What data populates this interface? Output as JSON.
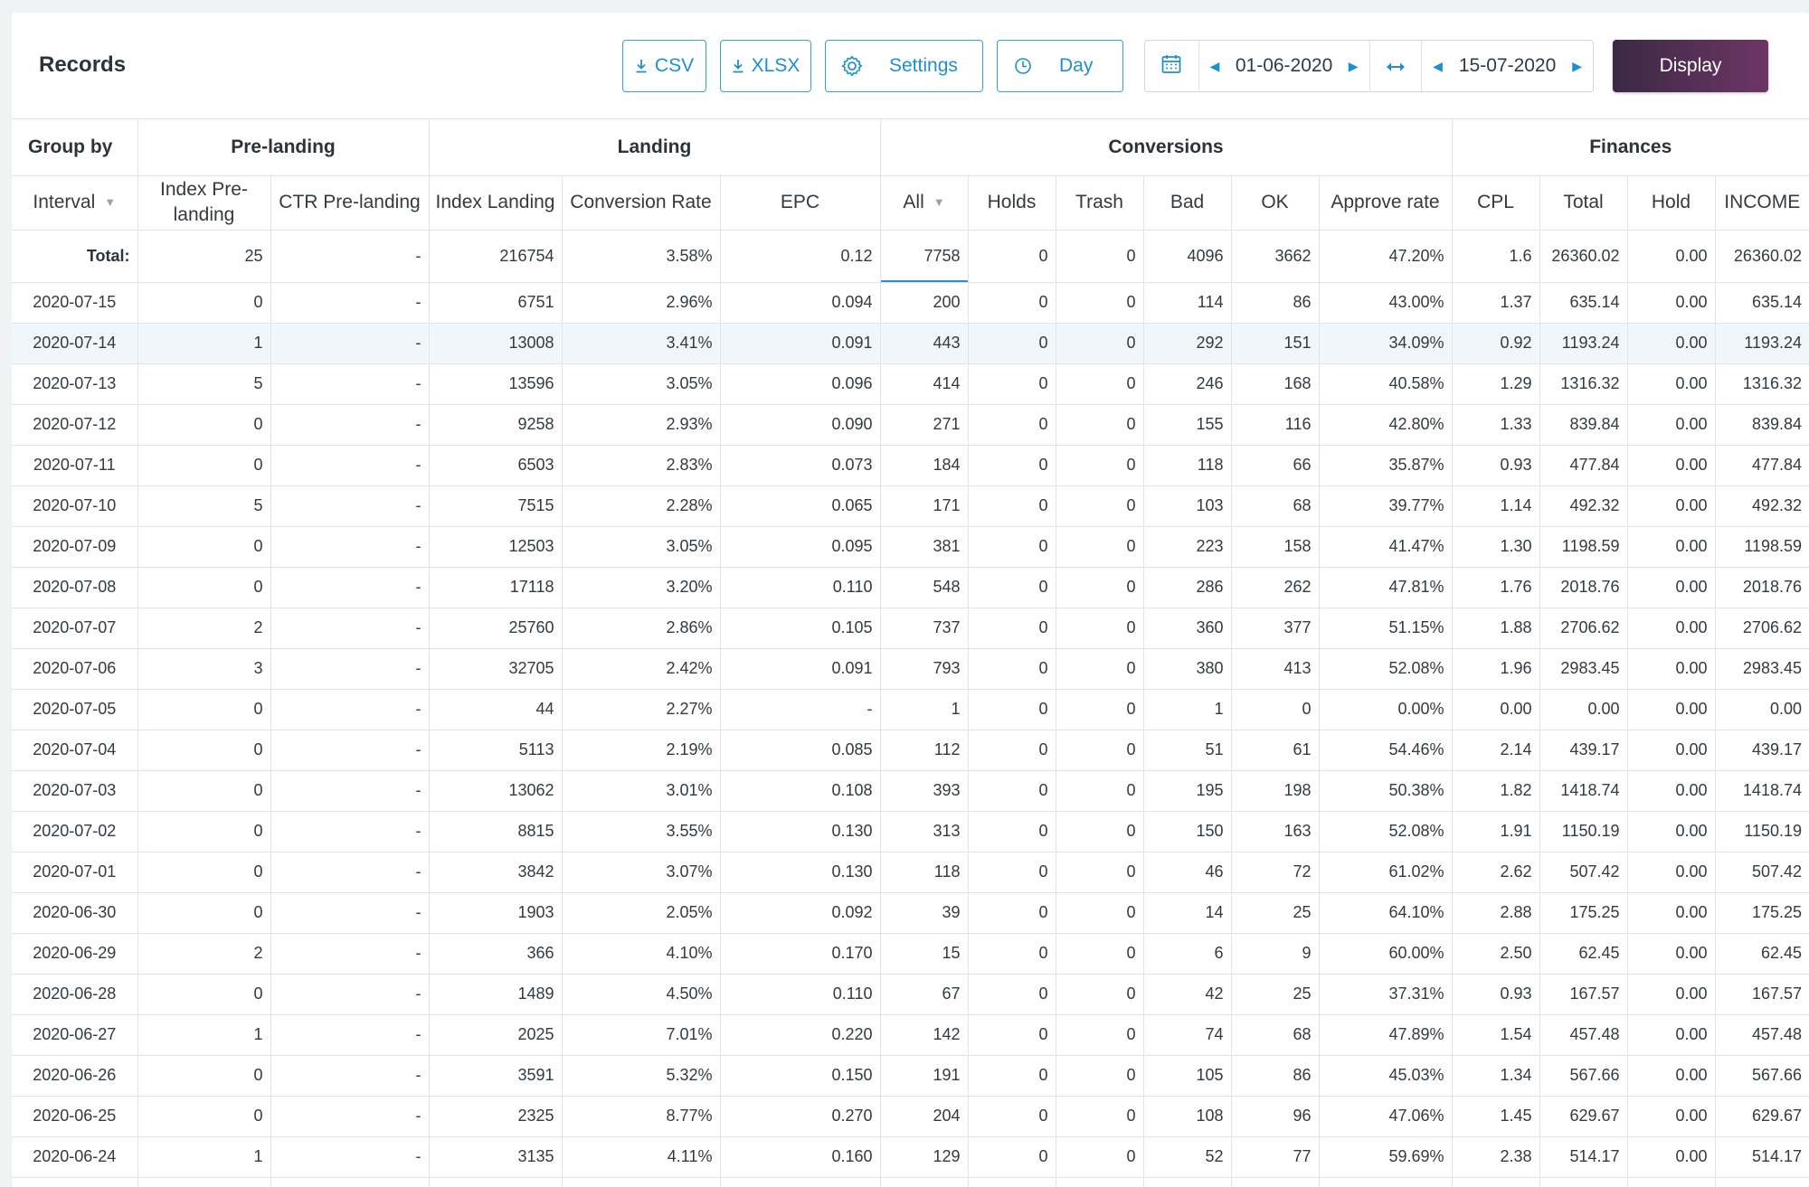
{
  "page": {
    "title": "Records"
  },
  "toolbar": {
    "csv_label": "CSV",
    "xlsx_label": "XLSX",
    "settings_label": "Settings",
    "interval_label": "Day",
    "date_from": "01-06-2020",
    "date_to": "15-07-2020",
    "display_label": "Display"
  },
  "icons": {
    "download": "download-icon",
    "settings": "gear-icon",
    "interval": "clock-icon",
    "calendar": "calendar-icon",
    "swap": "swap-horizontal-icon",
    "prev": "caret-left-icon",
    "next": "caret-right-icon",
    "sort": "caret-down-icon"
  },
  "colors": {
    "accent": "#1e8fd0",
    "display_button_start": "#3a2945",
    "display_button_end": "#6e3565",
    "highlight_row": "#f0f7fc"
  },
  "table": {
    "groups": [
      {
        "label": "Group by",
        "span": 1
      },
      {
        "label": "Pre-landing",
        "span": 2
      },
      {
        "label": "Landing",
        "span": 3
      },
      {
        "label": "Conversions",
        "span": 6
      },
      {
        "label": "Finances",
        "span": 4
      }
    ],
    "columns": [
      {
        "label": "Interval",
        "sortable": true
      },
      {
        "label": "Index Pre-landing"
      },
      {
        "label": "CTR Pre-landing"
      },
      {
        "label": "Index Landing"
      },
      {
        "label": "Conversion Rate"
      },
      {
        "label": "EPC"
      },
      {
        "label": "All",
        "sortable": true
      },
      {
        "label": "Holds"
      },
      {
        "label": "Trash"
      },
      {
        "label": "Bad"
      },
      {
        "label": "OK"
      },
      {
        "label": "Approve rate"
      },
      {
        "label": "CPL"
      },
      {
        "label": "Total"
      },
      {
        "label": "Hold"
      },
      {
        "label": "INCOME"
      }
    ],
    "total": [
      "Total:",
      "25",
      "-",
      "216754",
      "3.58%",
      "0.12",
      "7758",
      "0",
      "0",
      "4096",
      "3662",
      "47.20%",
      "1.6",
      "26360.02",
      "0.00",
      "26360.02"
    ],
    "highlighted_row": 1,
    "rows": [
      [
        "2020-07-15",
        "0",
        "-",
        "6751",
        "2.96%",
        "0.094",
        "200",
        "0",
        "0",
        "114",
        "86",
        "43.00%",
        "1.37",
        "635.14",
        "0.00",
        "635.14"
      ],
      [
        "2020-07-14",
        "1",
        "-",
        "13008",
        "3.41%",
        "0.091",
        "443",
        "0",
        "0",
        "292",
        "151",
        "34.09%",
        "0.92",
        "1193.24",
        "0.00",
        "1193.24"
      ],
      [
        "2020-07-13",
        "5",
        "-",
        "13596",
        "3.05%",
        "0.096",
        "414",
        "0",
        "0",
        "246",
        "168",
        "40.58%",
        "1.29",
        "1316.32",
        "0.00",
        "1316.32"
      ],
      [
        "2020-07-12",
        "0",
        "-",
        "9258",
        "2.93%",
        "0.090",
        "271",
        "0",
        "0",
        "155",
        "116",
        "42.80%",
        "1.33",
        "839.84",
        "0.00",
        "839.84"
      ],
      [
        "2020-07-11",
        "0",
        "-",
        "6503",
        "2.83%",
        "0.073",
        "184",
        "0",
        "0",
        "118",
        "66",
        "35.87%",
        "0.93",
        "477.84",
        "0.00",
        "477.84"
      ],
      [
        "2020-07-10",
        "5",
        "-",
        "7515",
        "2.28%",
        "0.065",
        "171",
        "0",
        "0",
        "103",
        "68",
        "39.77%",
        "1.14",
        "492.32",
        "0.00",
        "492.32"
      ],
      [
        "2020-07-09",
        "0",
        "-",
        "12503",
        "3.05%",
        "0.095",
        "381",
        "0",
        "0",
        "223",
        "158",
        "41.47%",
        "1.30",
        "1198.59",
        "0.00",
        "1198.59"
      ],
      [
        "2020-07-08",
        "0",
        "-",
        "17118",
        "3.20%",
        "0.110",
        "548",
        "0",
        "0",
        "286",
        "262",
        "47.81%",
        "1.76",
        "2018.76",
        "0.00",
        "2018.76"
      ],
      [
        "2020-07-07",
        "2",
        "-",
        "25760",
        "2.86%",
        "0.105",
        "737",
        "0",
        "0",
        "360",
        "377",
        "51.15%",
        "1.88",
        "2706.62",
        "0.00",
        "2706.62"
      ],
      [
        "2020-07-06",
        "3",
        "-",
        "32705",
        "2.42%",
        "0.091",
        "793",
        "0",
        "0",
        "380",
        "413",
        "52.08%",
        "1.96",
        "2983.45",
        "0.00",
        "2983.45"
      ],
      [
        "2020-07-05",
        "0",
        "-",
        "44",
        "2.27%",
        "-",
        "1",
        "0",
        "0",
        "1",
        "0",
        "0.00%",
        "0.00",
        "0.00",
        "0.00",
        "0.00"
      ],
      [
        "2020-07-04",
        "0",
        "-",
        "5113",
        "2.19%",
        "0.085",
        "112",
        "0",
        "0",
        "51",
        "61",
        "54.46%",
        "2.14",
        "439.17",
        "0.00",
        "439.17"
      ],
      [
        "2020-07-03",
        "0",
        "-",
        "13062",
        "3.01%",
        "0.108",
        "393",
        "0",
        "0",
        "195",
        "198",
        "50.38%",
        "1.82",
        "1418.74",
        "0.00",
        "1418.74"
      ],
      [
        "2020-07-02",
        "0",
        "-",
        "8815",
        "3.55%",
        "0.130",
        "313",
        "0",
        "0",
        "150",
        "163",
        "52.08%",
        "1.91",
        "1150.19",
        "0.00",
        "1150.19"
      ],
      [
        "2020-07-01",
        "0",
        "-",
        "3842",
        "3.07%",
        "0.130",
        "118",
        "0",
        "0",
        "46",
        "72",
        "61.02%",
        "2.62",
        "507.42",
        "0.00",
        "507.42"
      ],
      [
        "2020-06-30",
        "0",
        "-",
        "1903",
        "2.05%",
        "0.092",
        "39",
        "0",
        "0",
        "14",
        "25",
        "64.10%",
        "2.88",
        "175.25",
        "0.00",
        "175.25"
      ],
      [
        "2020-06-29",
        "2",
        "-",
        "366",
        "4.10%",
        "0.170",
        "15",
        "0",
        "0",
        "6",
        "9",
        "60.00%",
        "2.50",
        "62.45",
        "0.00",
        "62.45"
      ],
      [
        "2020-06-28",
        "0",
        "-",
        "1489",
        "4.50%",
        "0.110",
        "67",
        "0",
        "0",
        "42",
        "25",
        "37.31%",
        "0.93",
        "167.57",
        "0.00",
        "167.57"
      ],
      [
        "2020-06-27",
        "1",
        "-",
        "2025",
        "7.01%",
        "0.220",
        "142",
        "0",
        "0",
        "74",
        "68",
        "47.89%",
        "1.54",
        "457.48",
        "0.00",
        "457.48"
      ],
      [
        "2020-06-26",
        "0",
        "-",
        "3591",
        "5.32%",
        "0.150",
        "191",
        "0",
        "0",
        "105",
        "86",
        "45.03%",
        "1.34",
        "567.66",
        "0.00",
        "567.66"
      ],
      [
        "2020-06-25",
        "0",
        "-",
        "2325",
        "8.77%",
        "0.270",
        "204",
        "0",
        "0",
        "108",
        "96",
        "47.06%",
        "1.45",
        "629.67",
        "0.00",
        "629.67"
      ],
      [
        "2020-06-24",
        "1",
        "-",
        "3135",
        "4.11%",
        "0.160",
        "129",
        "0",
        "0",
        "52",
        "77",
        "59.69%",
        "2.38",
        "514.17",
        "0.00",
        "514.17"
      ],
      [
        "",
        "",
        "",
        "",
        "",
        "",
        "",
        "",
        "",
        "",
        "",
        "",
        "",
        "",
        "",
        ""
      ]
    ]
  }
}
